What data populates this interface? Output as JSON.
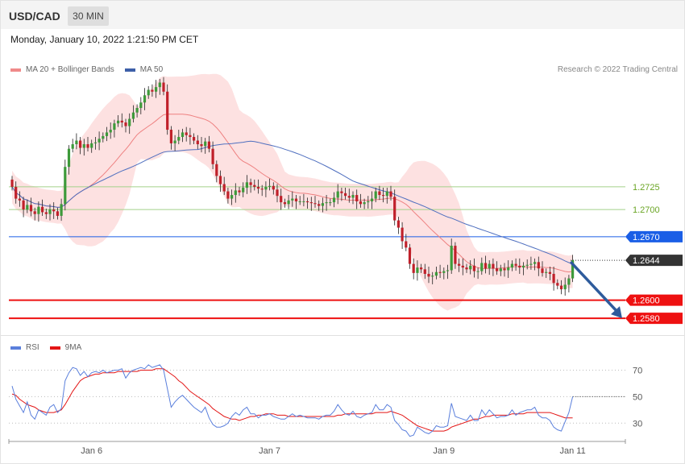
{
  "header": {
    "symbol": "USD/CAD",
    "timeframe": "30 MIN"
  },
  "datetime": "Monday, January 10, 2022 1:21:50 PM CET",
  "legend": {
    "ma20_label": "MA 20 + Bollinger Bands",
    "ma50_label": "MA 50",
    "rsi_label": "RSI",
    "ma9_label": "9MA"
  },
  "credit": "Research © 2022 Trading Central",
  "colors": {
    "up": "#3d9a3a",
    "down": "#c0202a",
    "bb_fill": "#fde1e1",
    "ma20": "#ee8080",
    "ma50": "#4f6fbf",
    "pivot": "#1a5ee6",
    "support": "#ee1111",
    "last": "#333333",
    "resist_line": "#a3d18a",
    "resist_text": "#6aa524",
    "rsi": "#5a7fdc",
    "ma9": "#e31515",
    "arrow": "#2e5b9c"
  },
  "chart_data": [
    {
      "type": "candlestick",
      "title": "USD/CAD",
      "timeframe": "30 MIN",
      "x_tick_labels": [
        "Jan 6",
        "Jan 7",
        "Jan 9",
        "Jan 11"
      ],
      "ylim": [
        1.2565,
        1.286
      ],
      "levels": [
        {
          "value": 1.2725,
          "label": "1.2725",
          "kind": "resistance"
        },
        {
          "value": 1.27,
          "label": "1.2700",
          "kind": "resistance"
        },
        {
          "value": 1.267,
          "label": "1.2670",
          "kind": "pivot"
        },
        {
          "value": 1.2644,
          "label": "1.2644",
          "kind": "last"
        },
        {
          "value": 1.26,
          "label": "1.2600",
          "kind": "support"
        },
        {
          "value": 1.258,
          "label": "1.2580",
          "kind": "support"
        }
      ],
      "forecast_arrow": {
        "from": 1.2644,
        "to": 1.258
      },
      "close": [
        1.2725,
        1.2712,
        1.271,
        1.27,
        1.2705,
        1.2698,
        1.2695,
        1.2703,
        1.2697,
        1.2695,
        1.27,
        1.2698,
        1.2693,
        1.2706,
        1.2747,
        1.2767,
        1.2772,
        1.2776,
        1.2768,
        1.2772,
        1.2768,
        1.2773,
        1.2774,
        1.2778,
        1.2781,
        1.2785,
        1.2788,
        1.2795,
        1.2798,
        1.2796,
        1.2792,
        1.28,
        1.2807,
        1.2812,
        1.2818,
        1.2826,
        1.2832,
        1.283,
        1.2835,
        1.284,
        1.283,
        1.2788,
        1.2773,
        1.2776,
        1.278,
        1.2785,
        1.2782,
        1.278,
        1.2776,
        1.2772,
        1.277,
        1.2775,
        1.2767,
        1.275,
        1.2737,
        1.2728,
        1.272,
        1.2712,
        1.2716,
        1.2721,
        1.2719,
        1.2724,
        1.273,
        1.2727,
        1.2725,
        1.2723,
        1.2722,
        1.2725,
        1.2726,
        1.2722,
        1.2715,
        1.2708,
        1.2706,
        1.271,
        1.2712,
        1.2709,
        1.2709,
        1.2709,
        1.2708,
        1.2707,
        1.2706,
        1.2704,
        1.2707,
        1.2708,
        1.2708,
        1.2713,
        1.272,
        1.2718,
        1.2715,
        1.2713,
        1.2716,
        1.2709,
        1.2706,
        1.2708,
        1.2709,
        1.2712,
        1.272,
        1.2716,
        1.2715,
        1.272,
        1.2714,
        1.2688,
        1.268,
        1.2665,
        1.2658,
        1.264,
        1.263,
        1.2636,
        1.2634,
        1.2629,
        1.2626,
        1.2627,
        1.2631,
        1.263,
        1.2632,
        1.2633,
        1.266,
        1.264,
        1.2638,
        1.2636,
        1.2634,
        1.2638,
        1.2632,
        1.2632,
        1.2641,
        1.2635,
        1.264,
        1.2635,
        1.2632,
        1.2635,
        1.2633,
        1.2636,
        1.264,
        1.2638,
        1.2636,
        1.2638,
        1.2639,
        1.264,
        1.2642,
        1.2635,
        1.263,
        1.2631,
        1.2629,
        1.2619,
        1.2616,
        1.2612,
        1.2617,
        1.2624,
        1.2644
      ]
    },
    {
      "type": "line",
      "title": "RSI",
      "ylim": [
        18,
        80
      ],
      "y_ticks": [
        30,
        50,
        70
      ],
      "series": [
        {
          "name": "RSI",
          "values": [
            58,
            48,
            43,
            38,
            46,
            36,
            33,
            40,
            38,
            36,
            42,
            44,
            38,
            41,
            62,
            68,
            72,
            71,
            66,
            69,
            65,
            68,
            69,
            68,
            70,
            68,
            69,
            70,
            70,
            71,
            64,
            68,
            70,
            71,
            72,
            71,
            74,
            72,
            73,
            74,
            70,
            56,
            42,
            46,
            49,
            51,
            48,
            45,
            42,
            40,
            38,
            42,
            34,
            29,
            27,
            27,
            28,
            30,
            35,
            38,
            36,
            40,
            42,
            37,
            37,
            34,
            36,
            36,
            37,
            35,
            34,
            33,
            33,
            35,
            37,
            35,
            36,
            35,
            34,
            34,
            34,
            33,
            35,
            36,
            36,
            39,
            44,
            40,
            37,
            36,
            39,
            35,
            34,
            36,
            37,
            38,
            44,
            40,
            40,
            44,
            42,
            32,
            29,
            25,
            24,
            20,
            21,
            27,
            25,
            23,
            22,
            24,
            28,
            27,
            27,
            28,
            45,
            35,
            34,
            33,
            32,
            36,
            32,
            32,
            40,
            36,
            40,
            37,
            34,
            35,
            35,
            36,
            40,
            36,
            38,
            39,
            40,
            40,
            42,
            36,
            34,
            34,
            32,
            27,
            25,
            24,
            31,
            38,
            50
          ]
        },
        {
          "name": "9MA",
          "values": [
            52,
            51,
            48,
            46,
            44,
            43,
            42,
            40,
            39,
            38,
            38,
            38,
            39,
            40,
            44,
            49,
            54,
            58,
            62,
            64,
            65,
            66,
            67,
            67,
            68,
            68,
            68,
            68,
            69,
            69,
            69,
            69,
            69,
            69,
            70,
            70,
            70,
            70,
            71,
            71,
            71,
            69,
            67,
            65,
            62,
            60,
            57,
            54,
            52,
            50,
            48,
            46,
            44,
            41,
            39,
            37,
            35,
            34,
            33,
            33,
            32,
            33,
            34,
            35,
            35,
            36,
            36,
            37,
            37,
            37,
            36,
            36,
            36,
            35,
            35,
            35,
            35,
            35,
            35,
            35,
            35,
            35,
            35,
            35,
            35,
            35,
            36,
            36,
            37,
            37,
            37,
            37,
            37,
            37,
            37,
            37,
            38,
            38,
            38,
            38,
            39,
            38,
            37,
            36,
            34,
            32,
            30,
            28,
            27,
            26,
            25,
            24,
            24,
            24,
            24,
            25,
            27,
            28,
            29,
            30,
            31,
            32,
            33,
            33,
            34,
            35,
            35,
            36,
            36,
            36,
            36,
            36,
            37,
            37,
            37,
            37,
            38,
            38,
            38,
            38,
            38,
            38,
            38,
            37,
            36,
            35,
            34,
            34,
            34
          ]
        }
      ]
    }
  ]
}
